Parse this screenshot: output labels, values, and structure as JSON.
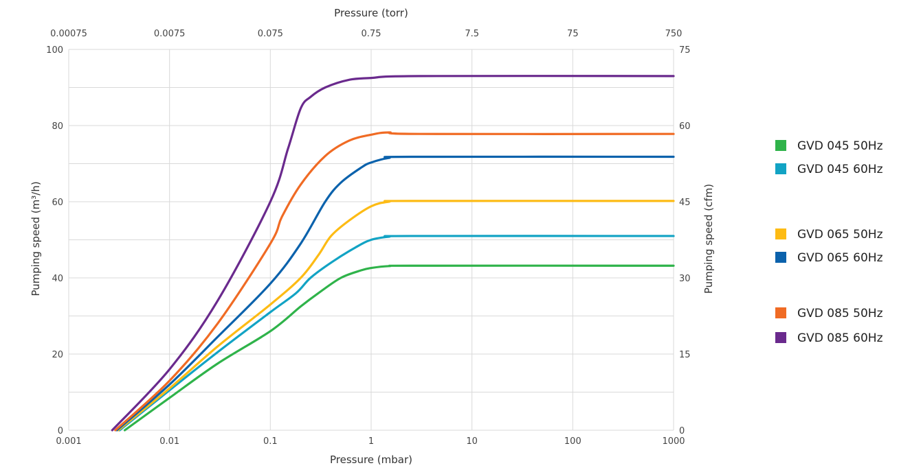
{
  "chart_data": {
    "type": "line",
    "x_scale": "log",
    "xlabel": "Pressure (mbar)",
    "x2label": "Pressure (torr)",
    "ylabel": "Pumping speed (m³/h)",
    "y2label": "Pumping speed (cfm)",
    "xlim": [
      0.001,
      1000
    ],
    "ylim": [
      0,
      100
    ],
    "y2lim": [
      0,
      75
    ],
    "x_ticks": [
      {
        "value": 0.001,
        "label": "0.001"
      },
      {
        "value": 0.01,
        "label": "0.01"
      },
      {
        "value": 0.1,
        "label": "0.1"
      },
      {
        "value": 1,
        "label": "1"
      },
      {
        "value": 10,
        "label": "10"
      },
      {
        "value": 100,
        "label": "100"
      },
      {
        "value": 1000,
        "label": "1000"
      }
    ],
    "x2_ticks": [
      {
        "value": 0.001,
        "label": "0.00075"
      },
      {
        "value": 0.01,
        "label": "0.0075"
      },
      {
        "value": 0.1,
        "label": "0.075"
      },
      {
        "value": 1,
        "label": "0.75"
      },
      {
        "value": 10,
        "label": "7.5"
      },
      {
        "value": 100,
        "label": "75"
      },
      {
        "value": 1000,
        "label": "750"
      }
    ],
    "y_ticks": [
      {
        "value": 0,
        "label": "0"
      },
      {
        "value": 20,
        "label": "20"
      },
      {
        "value": 40,
        "label": "40"
      },
      {
        "value": 60,
        "label": "60"
      },
      {
        "value": 80,
        "label": "80"
      },
      {
        "value": 100,
        "label": "100"
      }
    ],
    "y2_ticks": [
      {
        "value": 0,
        "label": "0"
      },
      {
        "value": 15,
        "label": "15"
      },
      {
        "value": 30,
        "label": "30"
      },
      {
        "value": 45,
        "label": "45"
      },
      {
        "value": 60,
        "label": "60"
      },
      {
        "value": 75,
        "label": "75"
      }
    ],
    "grid": true,
    "legend_position": "right",
    "series": [
      {
        "name": "GVD 045 50Hz",
        "color": "#2fb34a",
        "points": [
          [
            0.0036,
            0
          ],
          [
            0.01,
            8.5
          ],
          [
            0.03,
            17.5
          ],
          [
            0.1,
            26
          ],
          [
            0.2,
            32.5
          ],
          [
            0.3,
            36
          ],
          [
            0.5,
            40
          ],
          [
            0.8,
            42
          ],
          [
            1,
            42.6
          ],
          [
            1.5,
            43.1
          ],
          [
            3,
            43.2
          ],
          [
            1000,
            43.2
          ]
        ]
      },
      {
        "name": "GVD 045 60Hz",
        "color": "#12a3c4",
        "points": [
          [
            0.0032,
            0
          ],
          [
            0.01,
            10.5
          ],
          [
            0.03,
            20.5
          ],
          [
            0.1,
            31
          ],
          [
            0.18,
            36
          ],
          [
            0.25,
            40
          ],
          [
            0.4,
            44
          ],
          [
            0.7,
            48
          ],
          [
            1,
            50
          ],
          [
            1.5,
            50.8
          ],
          [
            2.5,
            51
          ],
          [
            1000,
            51
          ]
        ]
      },
      {
        "name": "GVD 065 50Hz",
        "color": "#fdbb14",
        "points": [
          [
            0.0031,
            0
          ],
          [
            0.01,
            11
          ],
          [
            0.03,
            22
          ],
          [
            0.1,
            33
          ],
          [
            0.2,
            40
          ],
          [
            0.3,
            46
          ],
          [
            0.4,
            51
          ],
          [
            0.6,
            55
          ],
          [
            1,
            58.8
          ],
          [
            1.5,
            60
          ],
          [
            2.5,
            60.2
          ],
          [
            1000,
            60.2
          ]
        ]
      },
      {
        "name": "GVD 065 60Hz",
        "color": "#0b62ac",
        "points": [
          [
            0.003,
            0
          ],
          [
            0.01,
            12
          ],
          [
            0.03,
            24.5
          ],
          [
            0.1,
            38.5
          ],
          [
            0.2,
            49
          ],
          [
            0.35,
            60
          ],
          [
            0.5,
            65
          ],
          [
            0.8,
            69
          ],
          [
            1,
            70.3
          ],
          [
            1.5,
            71.5
          ],
          [
            2.5,
            71.8
          ],
          [
            1000,
            71.8
          ]
        ]
      },
      {
        "name": "GVD 085 50Hz",
        "color": "#f06b24",
        "points": [
          [
            0.0029,
            0
          ],
          [
            0.01,
            13
          ],
          [
            0.03,
            28
          ],
          [
            0.1,
            49
          ],
          [
            0.13,
            56
          ],
          [
            0.2,
            64.5
          ],
          [
            0.35,
            72
          ],
          [
            0.6,
            76
          ],
          [
            1,
            77.6
          ],
          [
            1.5,
            78.2
          ],
          [
            3,
            77.8
          ],
          [
            1000,
            77.8
          ]
        ]
      },
      {
        "name": "GVD 085 60Hz",
        "color": "#6a2a8d",
        "points": [
          [
            0.0027,
            0
          ],
          [
            0.01,
            16
          ],
          [
            0.03,
            34
          ],
          [
            0.1,
            60
          ],
          [
            0.15,
            74
          ],
          [
            0.2,
            84.5
          ],
          [
            0.25,
            87.5
          ],
          [
            0.35,
            90
          ],
          [
            0.6,
            92
          ],
          [
            1,
            92.5
          ],
          [
            3,
            93
          ],
          [
            1000,
            93
          ]
        ]
      }
    ]
  }
}
